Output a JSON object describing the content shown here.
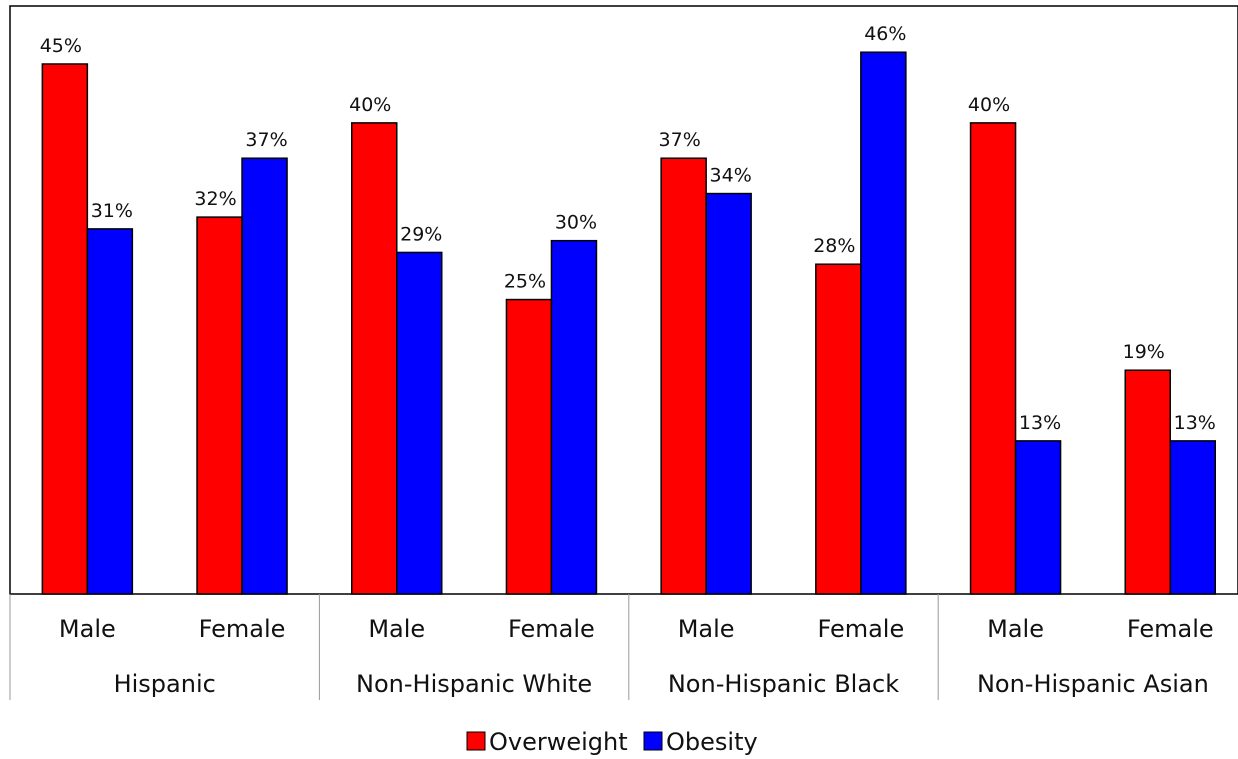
{
  "chart_data": {
    "type": "bar",
    "title": "",
    "groups": [
      {
        "label": "Hispanic",
        "categories": [
          "Male",
          "Female"
        ]
      },
      {
        "label": "Non-Hispanic White",
        "categories": [
          "Male",
          "Female"
        ]
      },
      {
        "label": "Non-Hispanic Black",
        "categories": [
          "Male",
          "Female"
        ]
      },
      {
        "label": "Non-Hispanic Asian",
        "categories": [
          "Male",
          "Female"
        ]
      }
    ],
    "categories": [
      "Male",
      "Female",
      "Male",
      "Female",
      "Male",
      "Female",
      "Male",
      "Female"
    ],
    "series": [
      {
        "name": "Overweight",
        "color": "#ff0000",
        "values": [
          45,
          32,
          40,
          25,
          37,
          28,
          40,
          19
        ],
        "labels": [
          "45%",
          "32%",
          "40%",
          "25%",
          "37%",
          "28%",
          "40%",
          "19%"
        ]
      },
      {
        "name": "Obesity",
        "color": "#0000ff",
        "values": [
          31,
          37,
          29,
          30,
          34,
          46,
          13,
          13
        ],
        "labels": [
          "31%",
          "37%",
          "29%",
          "30%",
          "34%",
          "46%",
          "13%",
          "13%"
        ]
      }
    ],
    "ylim": [
      0,
      50
    ],
    "unit": "%",
    "grid": false,
    "legend": "bottom"
  }
}
